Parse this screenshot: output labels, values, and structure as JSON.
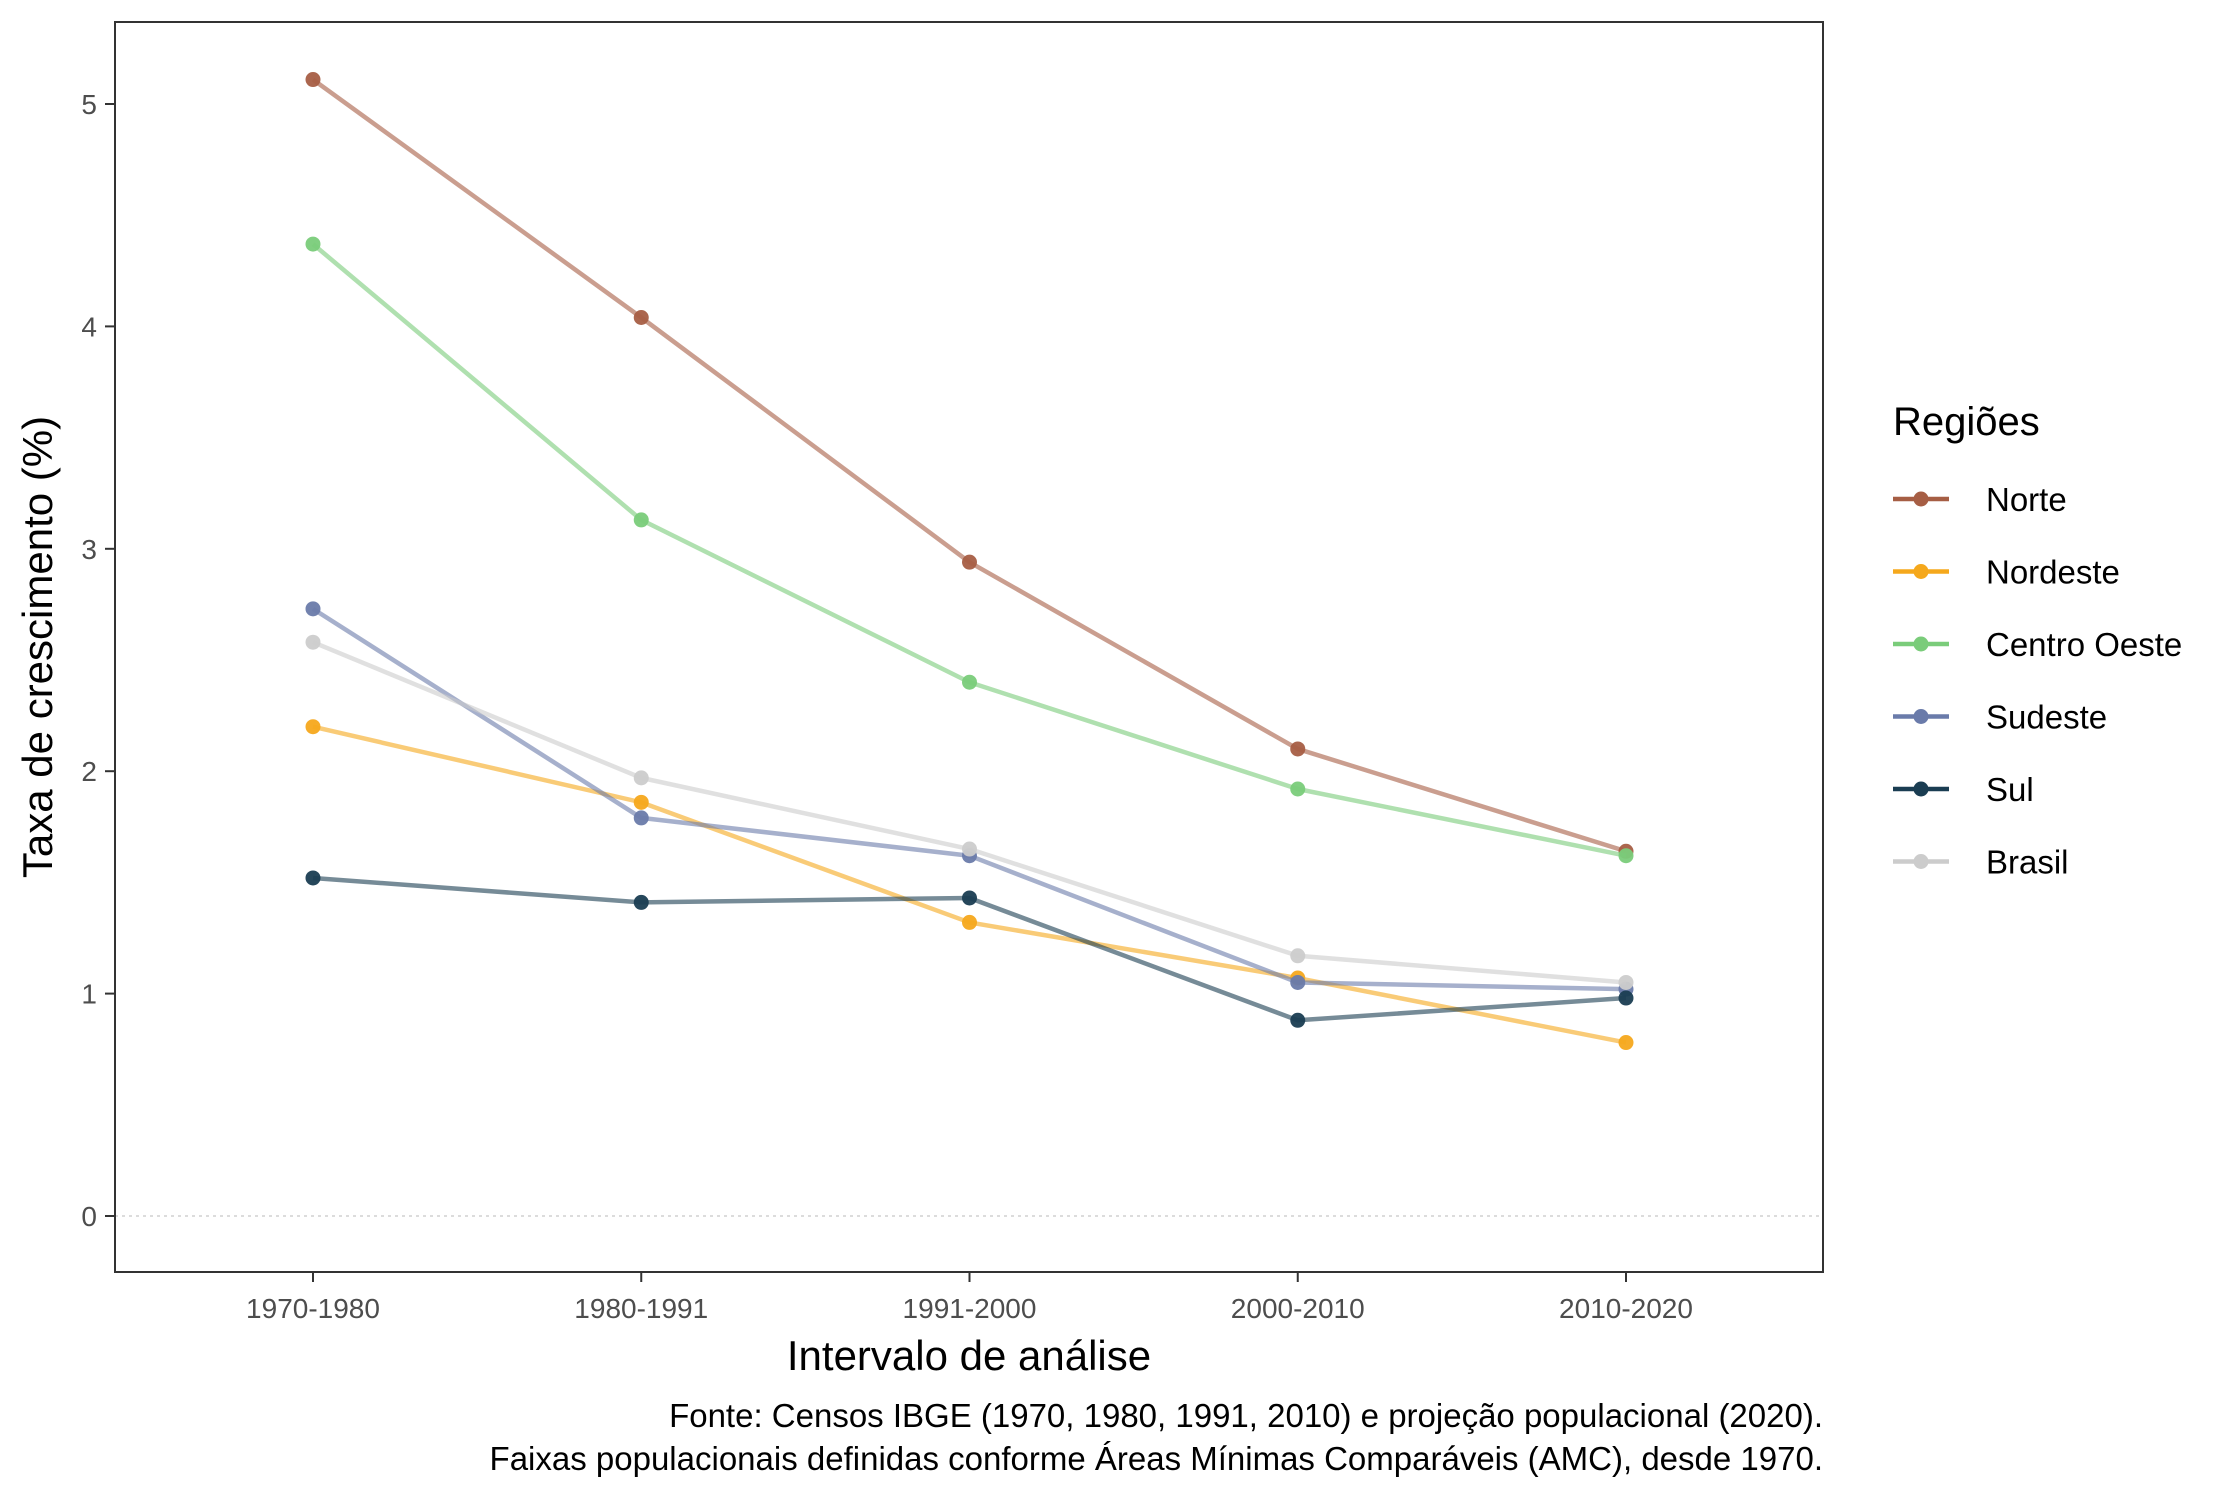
{
  "chart_data": {
    "type": "line",
    "title": "",
    "xlabel": "Intervalo de análise",
    "ylabel": "Taxa de crescimento (%)",
    "categories": [
      "1970-1980",
      "1980-1991",
      "1991-2000",
      "2000-2010",
      "2010-2020"
    ],
    "ylim": [
      -0.25,
      5.25
    ],
    "yticks": [
      0,
      1,
      2,
      3,
      4,
      5
    ],
    "grid": false,
    "zero_reference_line": true,
    "legend": {
      "title": "Regiões",
      "position": "right"
    },
    "series": [
      {
        "name": "Norte",
        "color": "#A65E44",
        "values": [
          5.11,
          4.04,
          2.94,
          2.1,
          1.64
        ]
      },
      {
        "name": "Nordeste",
        "color": "#F5A81C",
        "values": [
          2.2,
          1.86,
          1.32,
          1.07,
          0.78
        ]
      },
      {
        "name": "Centro Oeste",
        "color": "#7ACC7A",
        "values": [
          4.37,
          3.13,
          2.4,
          1.92,
          1.62
        ]
      },
      {
        "name": "Sudeste",
        "color": "#6A7BAA",
        "values": [
          2.73,
          1.79,
          1.62,
          1.05,
          1.02
        ]
      },
      {
        "name": "Sul",
        "color": "#1A3D52",
        "values": [
          1.52,
          1.41,
          1.43,
          0.88,
          0.98
        ]
      },
      {
        "name": "Brasil",
        "color": "#CCCCCC",
        "values": [
          2.58,
          1.97,
          1.65,
          1.17,
          1.05
        ]
      }
    ],
    "caption": [
      "Fonte: Censos IBGE (1970, 1980, 1991, 2010) e projeção populacional (2020).",
      "Faixas populacionais definidas conforme Áreas Mínimas Comparáveis (AMC), desde 1970."
    ]
  }
}
